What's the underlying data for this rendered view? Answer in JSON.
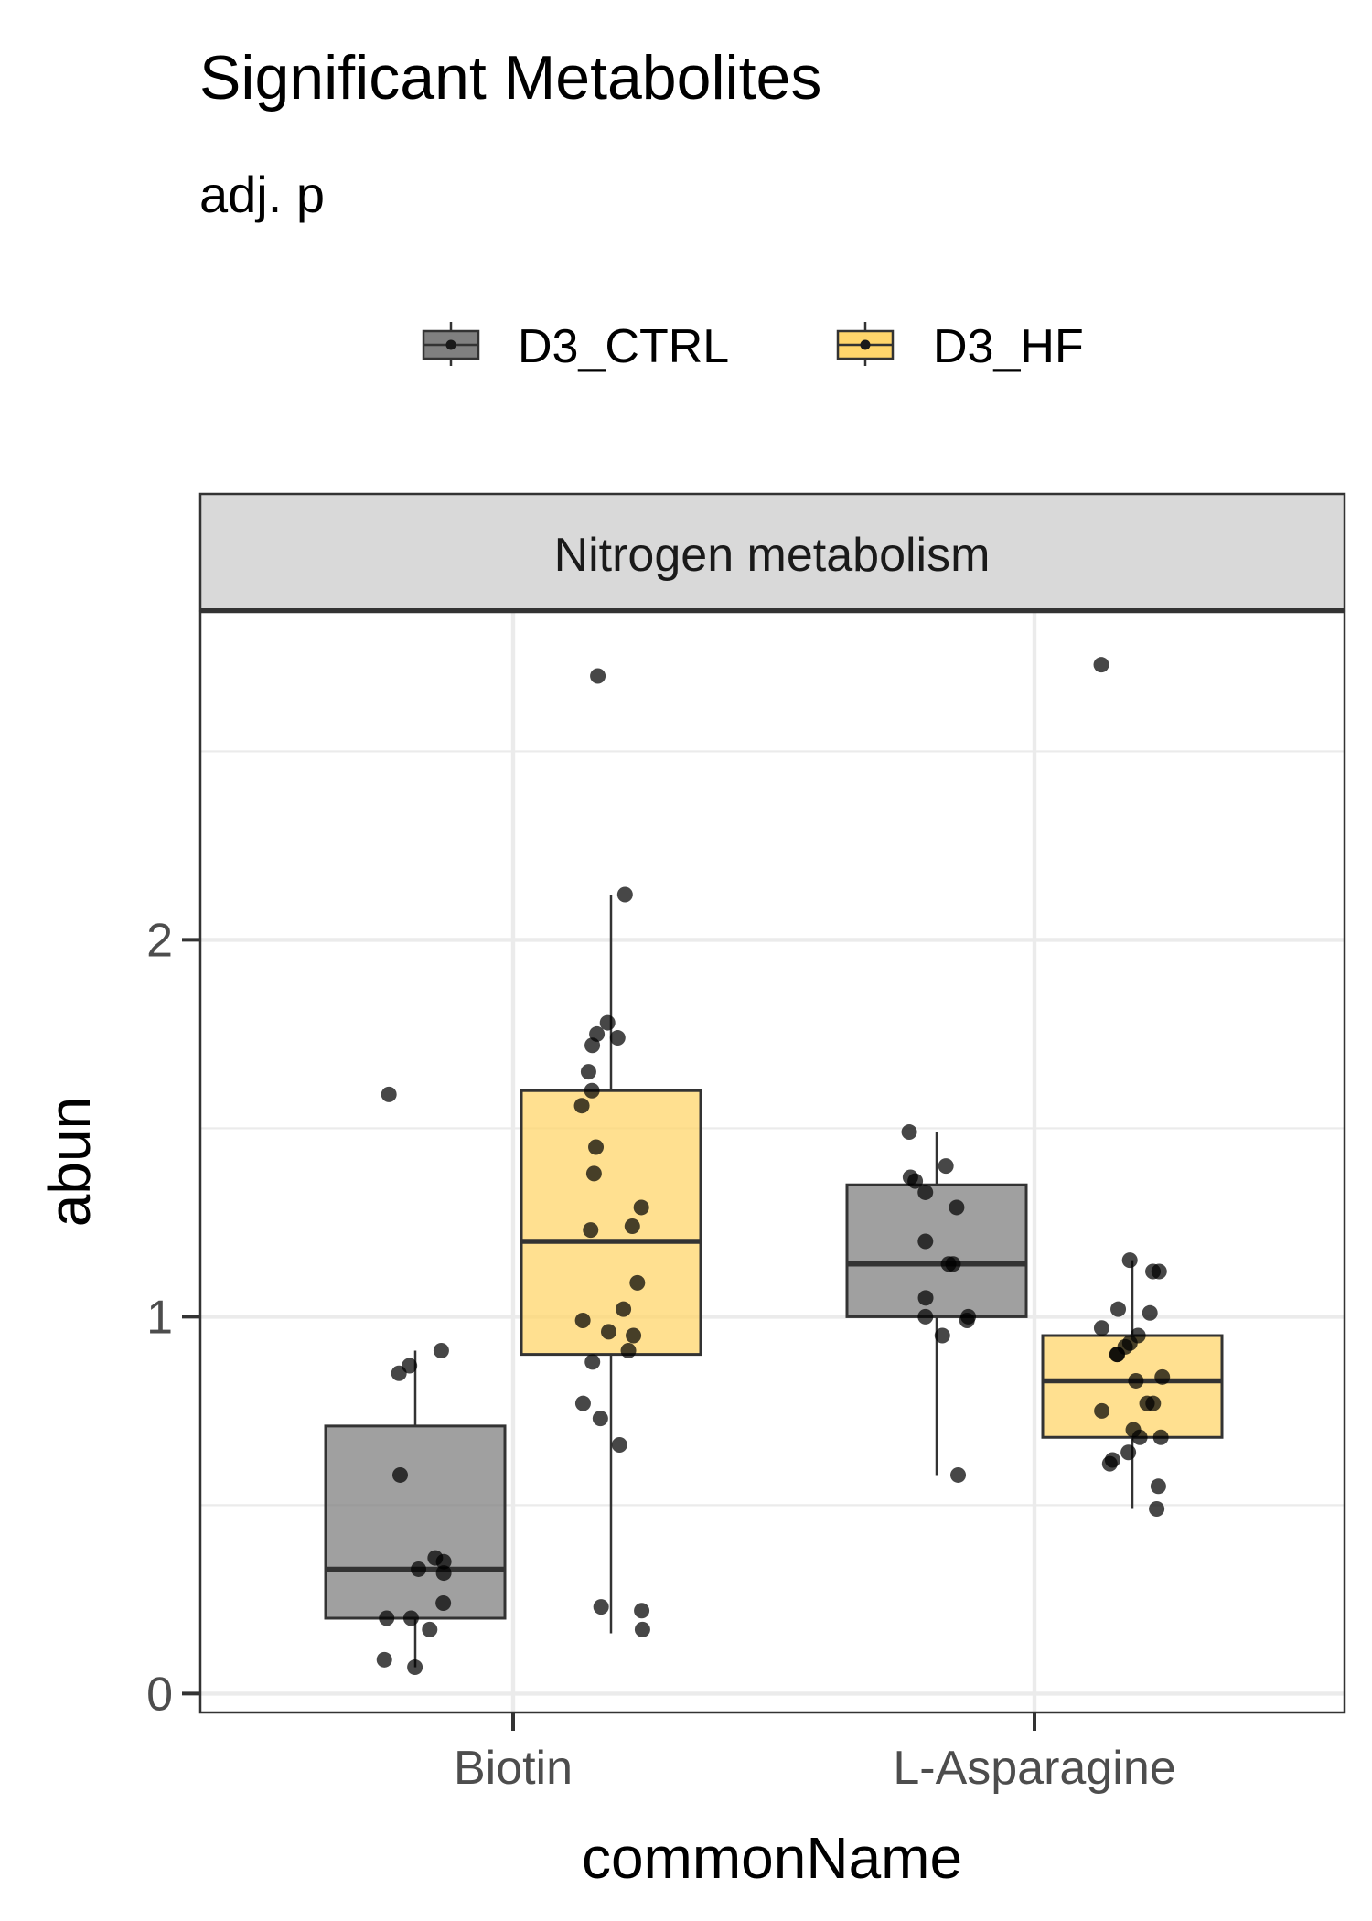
{
  "chart_data": {
    "type": "boxplot",
    "title": "Significant Metabolites",
    "subtitle": "adj. p",
    "facet_label": "Nitrogen metabolism",
    "xlabel": "commonName",
    "ylabel": "abun",
    "categories": [
      "Biotin",
      "L-Asparagine"
    ],
    "ylim": [
      -0.05,
      2.87
    ],
    "yticks": [
      0,
      1,
      2
    ],
    "ytick_labels": [
      "0",
      "1",
      "2"
    ],
    "grid": true,
    "legend": {
      "position": "top",
      "entries": [
        {
          "name": "D3_CTRL",
          "color": "#808080"
        },
        {
          "name": "D3_HF",
          "color": "#FFD56B"
        }
      ]
    },
    "series": [
      {
        "name": "D3_CTRL",
        "color": "#808080",
        "boxes": [
          {
            "category": "Biotin",
            "whisker_low": 0.07,
            "q1": 0.2,
            "median": 0.33,
            "q3": 0.71,
            "whisker_high": 0.91
          },
          {
            "category": "L-Asparagine",
            "whisker_low": 0.58,
            "q1": 1.0,
            "median": 1.14,
            "q3": 1.35,
            "whisker_high": 1.49
          }
        ],
        "points": [
          {
            "category": "Biotin",
            "values": [
              1.59,
              0.91,
              0.87,
              0.85,
              0.58,
              0.36,
              0.35,
              0.33,
              0.32,
              0.24,
              0.2,
              0.2,
              0.17,
              0.09,
              0.07
            ]
          },
          {
            "category": "L-Asparagine",
            "values": [
              1.49,
              1.4,
              1.37,
              1.36,
              1.33,
              1.29,
              1.2,
              1.14,
              1.14,
              1.05,
              1.0,
              1.0,
              0.99,
              0.95,
              0.58
            ]
          }
        ]
      },
      {
        "name": "D3_HF",
        "color": "#FFD56B",
        "boxes": [
          {
            "category": "Biotin",
            "whisker_low": 0.16,
            "q1": 0.9,
            "median": 1.2,
            "q3": 1.6,
            "whisker_high": 2.12
          },
          {
            "category": "L-Asparagine",
            "whisker_low": 0.49,
            "q1": 0.68,
            "median": 0.83,
            "q3": 0.95,
            "whisker_high": 1.15
          }
        ],
        "points": [
          {
            "category": "Biotin",
            "values": [
              2.7,
              2.12,
              1.78,
              1.74,
              1.75,
              1.72,
              1.65,
              1.6,
              1.56,
              1.45,
              1.38,
              1.29,
              1.24,
              1.23,
              1.09,
              1.02,
              0.99,
              0.96,
              0.95,
              0.91,
              0.88,
              0.77,
              0.73,
              0.66,
              0.23,
              0.22,
              0.17
            ]
          },
          {
            "category": "L-Asparagine",
            "values": [
              2.73,
              1.15,
              1.12,
              1.12,
              1.02,
              1.01,
              0.97,
              0.95,
              0.93,
              0.92,
              0.9,
              0.9,
              0.84,
              0.83,
              0.77,
              0.77,
              0.75,
              0.7,
              0.68,
              0.68,
              0.64,
              0.62,
              0.61,
              0.55,
              0.49
            ]
          }
        ]
      }
    ]
  }
}
